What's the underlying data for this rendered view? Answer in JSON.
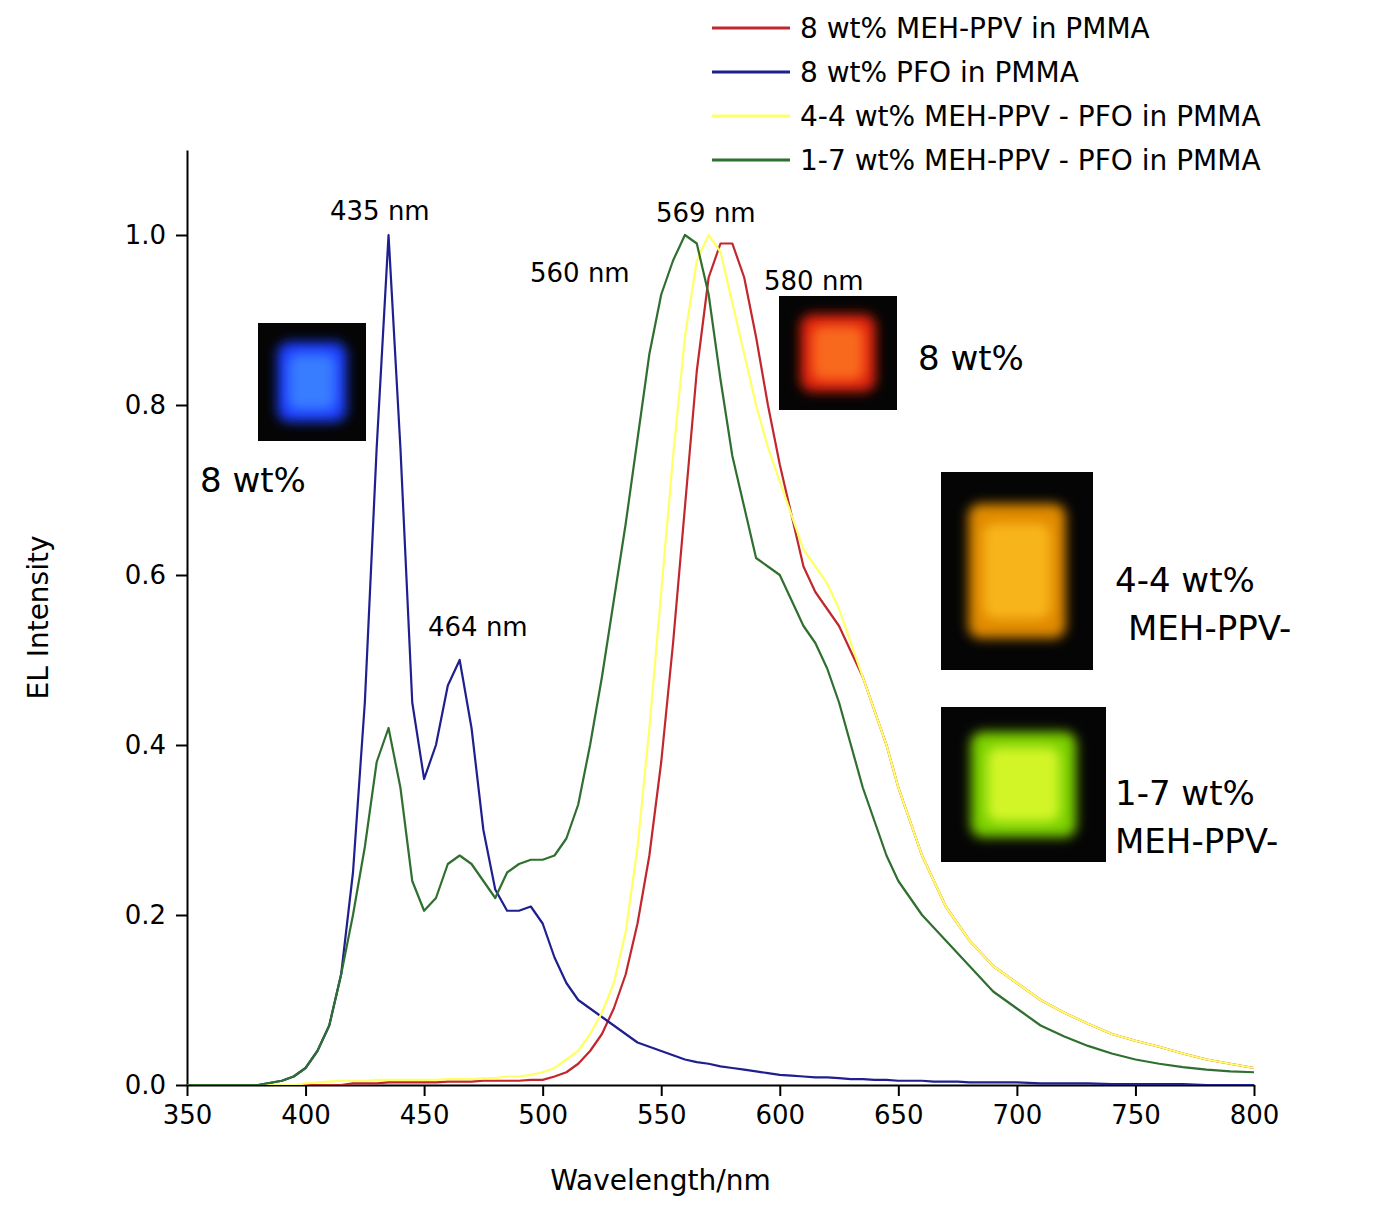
{
  "chart_data": {
    "type": "line",
    "x_label": "Wavelength/nm",
    "y_label": "EL Intensity",
    "xlim": [
      350,
      800
    ],
    "ylim": [
      0,
      1.1
    ],
    "xticks": [
      350,
      400,
      450,
      500,
      550,
      600,
      650,
      700,
      750,
      800
    ],
    "yticks": [
      {
        "value": 0,
        "label": "0.0"
      },
      0.2,
      0.4,
      0.6,
      0.8,
      {
        "value": 1,
        "label": "1.0"
      }
    ],
    "grid": false,
    "legend": "top-right",
    "x": [
      350,
      360,
      370,
      380,
      390,
      395,
      400,
      405,
      410,
      415,
      420,
      425,
      430,
      435,
      440,
      445,
      450,
      455,
      460,
      465,
      470,
      475,
      480,
      485,
      490,
      495,
      500,
      505,
      510,
      515,
      520,
      525,
      530,
      535,
      540,
      545,
      550,
      555,
      560,
      565,
      570,
      575,
      580,
      585,
      590,
      595,
      600,
      605,
      610,
      615,
      620,
      625,
      630,
      635,
      640,
      645,
      650,
      655,
      660,
      665,
      670,
      675,
      680,
      685,
      690,
      695,
      700,
      710,
      720,
      730,
      740,
      750,
      760,
      770,
      780,
      790,
      800
    ],
    "series": [
      {
        "name": "8 wt% MEH-PPV in PMMA",
        "color": "#c1272d",
        "values": [
          0,
          0,
          0,
          0,
          0,
          0,
          0,
          0,
          0,
          0,
          0.002,
          0.002,
          0.002,
          0.003,
          0.003,
          0.003,
          0.003,
          0.003,
          0.004,
          0.004,
          0.004,
          0.005,
          0.005,
          0.005,
          0.005,
          0.006,
          0.006,
          0.01,
          0.015,
          0.025,
          0.04,
          0.06,
          0.09,
          0.13,
          0.19,
          0.27,
          0.38,
          0.52,
          0.68,
          0.84,
          0.95,
          0.99,
          0.99,
          0.95,
          0.88,
          0.8,
          0.73,
          0.67,
          0.61,
          0.58,
          0.56,
          0.54,
          0.51,
          0.48,
          0.44,
          0.4,
          0.35,
          0.31,
          0.27,
          0.24,
          0.21,
          0.19,
          0.17,
          0.155,
          0.14,
          0.13,
          0.12,
          0.1,
          0.085,
          0.072,
          0.06,
          0.052,
          0.045,
          0.037,
          0.03,
          0.025,
          0.02
        ]
      },
      {
        "name": "8 wt% PFO in PMMA",
        "color": "#1f1f8f",
        "values": [
          0,
          0,
          0,
          0,
          0.005,
          0.01,
          0.02,
          0.04,
          0.07,
          0.13,
          0.25,
          0.45,
          0.75,
          1.0,
          0.75,
          0.45,
          0.36,
          0.4,
          0.47,
          0.5,
          0.42,
          0.3,
          0.23,
          0.205,
          0.205,
          0.21,
          0.19,
          0.15,
          0.12,
          0.1,
          0.09,
          0.08,
          0.07,
          0.06,
          0.05,
          0.045,
          0.04,
          0.035,
          0.03,
          0.027,
          0.025,
          0.022,
          0.02,
          0.018,
          0.016,
          0.014,
          0.012,
          0.011,
          0.01,
          0.009,
          0.009,
          0.008,
          0.007,
          0.007,
          0.006,
          0.006,
          0.005,
          0.005,
          0.005,
          0.004,
          0.004,
          0.004,
          0.003,
          0.003,
          0.003,
          0.003,
          0.003,
          0.002,
          0.002,
          0.002,
          0.001,
          0.001,
          0.001,
          0.001,
          0,
          0,
          0
        ]
      },
      {
        "name": "4-4 wt% MEH-PPV - PFO in PMMA",
        "color": "#ffff66",
        "values": [
          0,
          0,
          0,
          0,
          0,
          0,
          0.002,
          0.003,
          0.004,
          0.005,
          0.005,
          0.005,
          0.006,
          0.006,
          0.006,
          0.006,
          0.006,
          0.006,
          0.007,
          0.007,
          0.007,
          0.008,
          0.008,
          0.01,
          0.01,
          0.012,
          0.015,
          0.02,
          0.03,
          0.04,
          0.06,
          0.085,
          0.12,
          0.18,
          0.28,
          0.42,
          0.58,
          0.74,
          0.88,
          0.97,
          1.0,
          0.98,
          0.92,
          0.86,
          0.8,
          0.75,
          0.71,
          0.67,
          0.63,
          0.61,
          0.59,
          0.56,
          0.52,
          0.48,
          0.44,
          0.4,
          0.35,
          0.31,
          0.27,
          0.24,
          0.21,
          0.19,
          0.17,
          0.155,
          0.14,
          0.13,
          0.12,
          0.1,
          0.085,
          0.072,
          0.06,
          0.052,
          0.045,
          0.037,
          0.03,
          0.025,
          0.02
        ]
      },
      {
        "name": "1-7 wt% MEH-PPV - PFO in PMMA",
        "color": "#2f6f2f",
        "values": [
          0,
          0,
          0,
          0,
          0.005,
          0.01,
          0.02,
          0.04,
          0.07,
          0.13,
          0.2,
          0.28,
          0.38,
          0.42,
          0.35,
          0.24,
          0.205,
          0.22,
          0.26,
          0.27,
          0.26,
          0.24,
          0.22,
          0.25,
          0.26,
          0.265,
          0.265,
          0.27,
          0.29,
          0.33,
          0.4,
          0.48,
          0.57,
          0.66,
          0.76,
          0.86,
          0.93,
          0.97,
          1.0,
          0.99,
          0.93,
          0.83,
          0.74,
          0.68,
          0.62,
          0.61,
          0.6,
          0.57,
          0.54,
          0.52,
          0.49,
          0.45,
          0.4,
          0.35,
          0.31,
          0.27,
          0.24,
          0.22,
          0.2,
          0.185,
          0.17,
          0.155,
          0.14,
          0.125,
          0.11,
          0.1,
          0.09,
          0.07,
          0.057,
          0.046,
          0.037,
          0.03,
          0.025,
          0.021,
          0.018,
          0.016,
          0.015
        ]
      }
    ],
    "annotations": [
      "435 nm",
      "464 nm",
      "560 nm",
      "569 nm",
      "580 nm",
      "8 wt%",
      "8 wt%",
      "4-4 wt% MEH-PPV-",
      "1-7 wt% MEH-PPV-"
    ]
  }
}
